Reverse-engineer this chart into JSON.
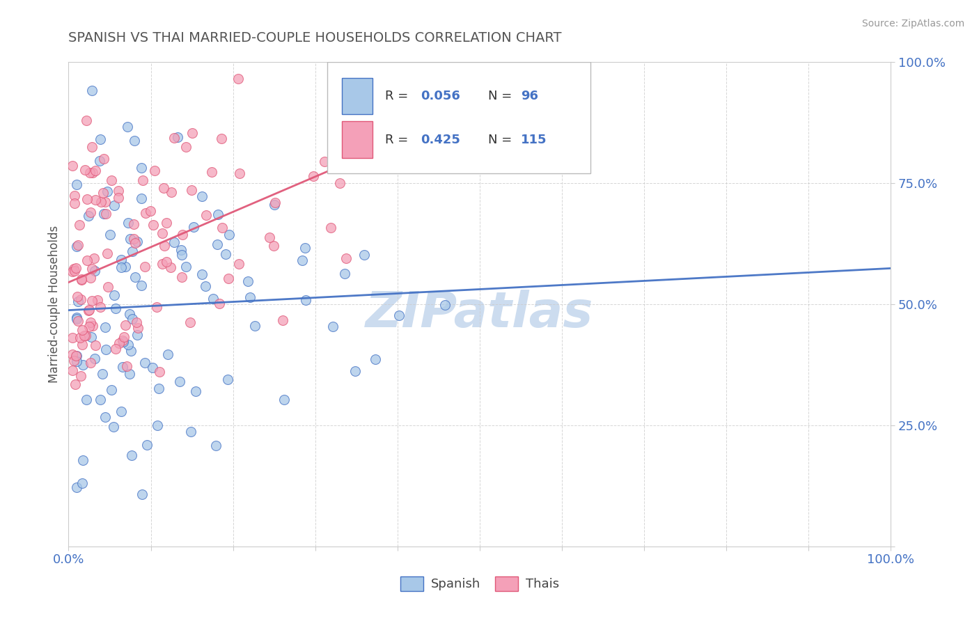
{
  "title": "SPANISH VS THAI MARRIED-COUPLE HOUSEHOLDS CORRELATION CHART",
  "source": "Source: ZipAtlas.com",
  "ylabel": "Married-couple Households",
  "legend_bottom": [
    "Spanish",
    "Thais"
  ],
  "spanish_color": "#a8c8e8",
  "thai_color": "#f4a0b8",
  "spanish_line_color": "#4472c4",
  "thai_line_color": "#e05878",
  "background_color": "#ffffff",
  "grid_color": "#cccccc",
  "title_color": "#555555",
  "label_color": "#4472c4",
  "r_spanish": 0.056,
  "n_spanish": 96,
  "r_thai": 0.425,
  "n_thai": 115,
  "watermark": "ZIPatlas",
  "watermark_color": "#ccdcef"
}
